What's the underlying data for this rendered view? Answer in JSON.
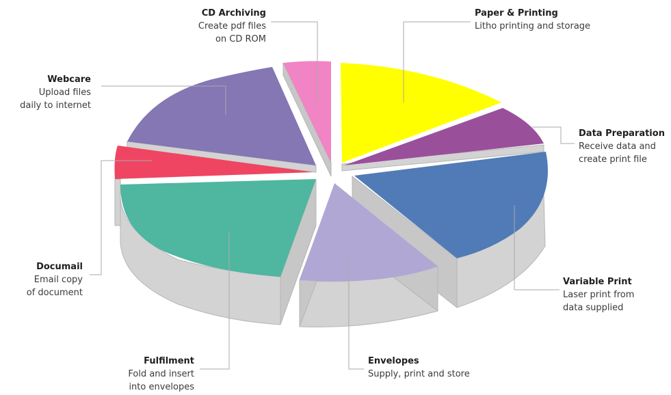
{
  "segments": [
    {
      "key": "paper",
      "title": "Paper & Printing",
      "lines": [
        "Litho printing and storage"
      ],
      "color": "#ffff00"
    },
    {
      "key": "data",
      "title": "Data Preparation",
      "lines": [
        "Receive data and",
        "create print file"
      ],
      "color": "#9a4f9b"
    },
    {
      "key": "variable",
      "title": "Variable Print",
      "lines": [
        "Laser print from",
        "data supplied"
      ],
      "color": "#517bb6"
    },
    {
      "key": "envelopes",
      "title": "Envelopes",
      "lines": [
        "Supply, print and store"
      ],
      "color": "#b1a7d5"
    },
    {
      "key": "fulfilment",
      "title": "Fulfilment",
      "lines": [
        "Fold and insert",
        "into envelopes"
      ],
      "color": "#4fb6a0"
    },
    {
      "key": "documail",
      "title": "Documail",
      "lines": [
        "Email copy",
        "of document"
      ],
      "color": "#ef4562"
    },
    {
      "key": "webcare",
      "title": "Webcare",
      "lines": [
        "Upload files",
        "daily to internet"
      ],
      "color": "#8477b4"
    },
    {
      "key": "cd",
      "title": "CD Archiving",
      "lines": [
        "Create pdf files",
        "on CD ROM"
      ],
      "color": "#f084c4"
    }
  ],
  "side_color": "#d3d3d3",
  "edge_color": "#a9a9a9"
}
